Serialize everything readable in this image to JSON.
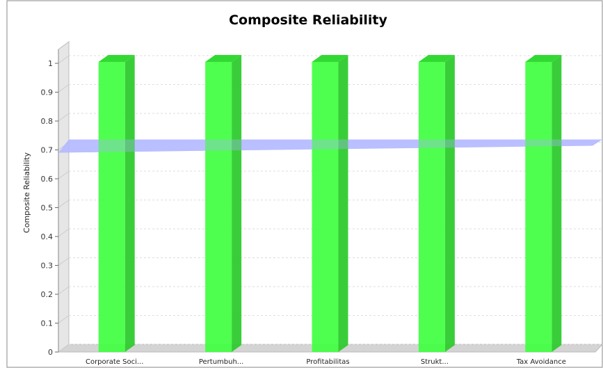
{
  "chart_data": {
    "type": "bar",
    "title": "Composite Reliability",
    "ylabel": "Composite Reliability",
    "xlabel": "",
    "categories": [
      "Corporate Soci...",
      "Pertumbuh...",
      "Profitabilitas",
      "Strukt...",
      "Tax Avoidance"
    ],
    "values": [
      1.0,
      1.0,
      1.0,
      1.0,
      1.0
    ],
    "ylim": [
      0,
      1.0
    ],
    "yticks": [
      "0",
      "0.1",
      "0.2",
      "0.3",
      "0.4",
      "0.5",
      "0.6",
      "0.7",
      "0.8",
      "0.9",
      "1"
    ],
    "threshold": 0.7,
    "grid": true,
    "colors": {
      "bar": "#40ff40",
      "bar_side": "#2ecb2e",
      "bar_top": "#33d933",
      "threshold": "#b3b8ff",
      "wall": "#e6e6e6",
      "grid": "#dddddd"
    }
  }
}
